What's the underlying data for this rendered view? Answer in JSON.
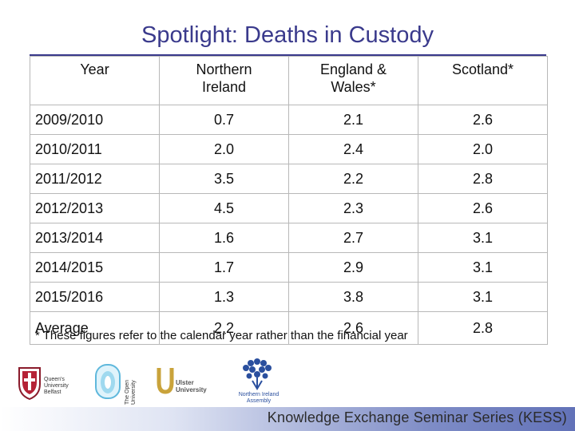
{
  "title": "Spotlight: Deaths in Custody",
  "table": {
    "headers": {
      "year": "Year",
      "ni_line1": "Northern",
      "ni_line2": "Ireland",
      "ew_line1": "England &",
      "ew_line2": "Wales*",
      "scotland": "Scotland*"
    },
    "rows": [
      {
        "year": "2009/2010",
        "ni": "0.7",
        "ew": "2.1",
        "sc": "2.6"
      },
      {
        "year": "2010/2011",
        "ni": "2.0",
        "ew": "2.4",
        "sc": "2.0"
      },
      {
        "year": "2011/2012",
        "ni": "3.5",
        "ew": "2.2",
        "sc": "2.8"
      },
      {
        "year": "2012/2013",
        "ni": "4.5",
        "ew": "2.3",
        "sc": "2.6"
      },
      {
        "year": "2013/2014",
        "ni": "1.6",
        "ew": "2.7",
        "sc": "3.1"
      },
      {
        "year": "2014/2015",
        "ni": "1.7",
        "ew": "2.9",
        "sc": "3.1"
      },
      {
        "year": "2015/2016",
        "ni": "1.3",
        "ew": "3.8",
        "sc": "3.1"
      },
      {
        "year": "Average",
        "ni": "2.2",
        "ew": "2.6",
        "sc": "2.8"
      }
    ]
  },
  "footnote": "* These figures refer to the calendar year rather than the financial year",
  "logos": {
    "queens": {
      "line1": "Queen's University",
      "line2": "Belfast"
    },
    "open": {
      "line1": "The Open",
      "line2": "University"
    },
    "ulster": {
      "line1": "Ulster",
      "line2": "University"
    },
    "nia": {
      "line1": "Northern Ireland",
      "line2": "Assembly"
    }
  },
  "banner": {
    "text": "Knowledge Exchange Seminar Series (KESS)"
  },
  "colors": {
    "title": "#3a3a8c",
    "grid": "#b8b8b8",
    "banner_end": "#6272b8"
  }
}
